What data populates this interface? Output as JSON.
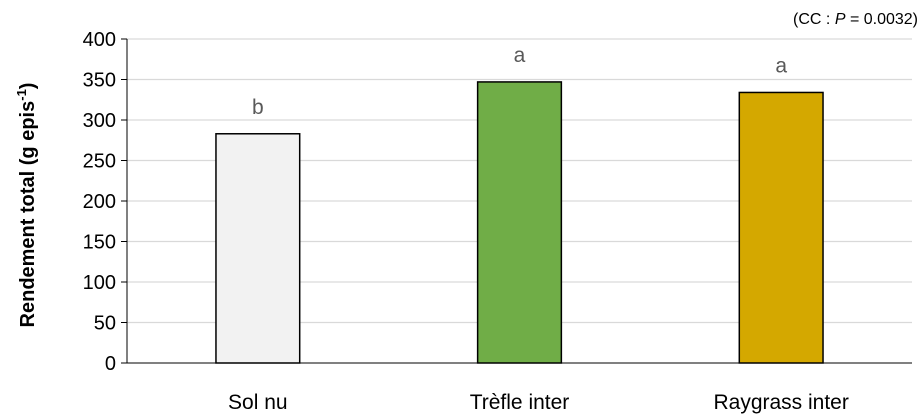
{
  "chart_data": {
    "type": "bar",
    "categories": [
      "Sol nu",
      "Trèfle inter",
      "Raygrass inter"
    ],
    "values": [
      283,
      347,
      334
    ],
    "significance_letters": [
      "b",
      "a",
      "a"
    ],
    "bar_colors": [
      "#f2f2f2",
      "#70ad47",
      "#d4a800"
    ],
    "bar_outline_color": "#000000",
    "gridline_color": "#d9d9d9",
    "ylabel_main": "Rendement total (g epis",
    "ylabel_sup": "-1",
    "ylabel_close": ")",
    "ylim": [
      0,
      400
    ],
    "yticks": [
      "0",
      "50",
      "100",
      "150",
      "200",
      "250",
      "300",
      "350",
      "400"
    ],
    "grid": true,
    "annotation": {
      "prefix": "(CC : ",
      "italic": "P",
      "suffix": " = 0.0032)"
    }
  }
}
